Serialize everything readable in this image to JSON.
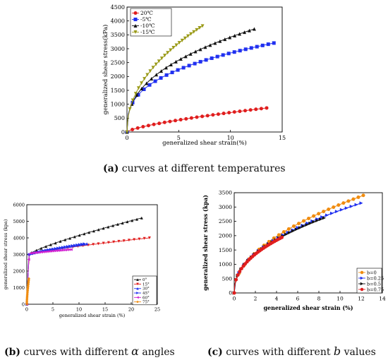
{
  "captions": {
    "a": {
      "letter": "(a)",
      "text": " curves at different temperatures"
    },
    "b": {
      "letter": "(b)",
      "pre": " curves with different ",
      "symbol": "α",
      "post": " angles"
    },
    "c": {
      "letter": "(c)",
      "pre": " curves with different ",
      "symbol": "b",
      "post": " values"
    }
  },
  "chart_data": [
    {
      "id": "a",
      "type": "line",
      "xlabel": "generalized shear strain(%)",
      "ylabel": "generalized shear stress(kPa)",
      "xlim": [
        0,
        15
      ],
      "ylim": [
        0,
        4500
      ],
      "xticks": [
        0,
        5,
        10,
        15
      ],
      "yticks": [
        0,
        500,
        1000,
        1500,
        2000,
        2500,
        3000,
        3500,
        4000,
        4500
      ],
      "legend_position": "top-left",
      "series": [
        {
          "name": "20℃",
          "color": "#e01e1e",
          "marker": "circle",
          "end_x": 13.5,
          "scale": 140,
          "power": 0.7
        },
        {
          "name": "-5℃",
          "color": "#2030f0",
          "marker": "square",
          "end_x": 14.2,
          "scale": 1300,
          "power": 0.34
        },
        {
          "name": "-10℃",
          "color": "#111111",
          "marker": "triangle-up",
          "end_x": 12.3,
          "scale": 1360,
          "power": 0.4
        },
        {
          "name": "-15℃",
          "color": "#9a9a18",
          "marker": "triangle-down",
          "end_x": 7.3,
          "scale": 1500,
          "power": 0.47
        }
      ]
    },
    {
      "id": "b",
      "type": "line",
      "xlabel": "generalized shear strain (%)",
      "ylabel": "generalized shear stress (kpa)",
      "xlim": [
        0,
        25
      ],
      "ylim": [
        0,
        6000
      ],
      "xticks": [
        0,
        5,
        10,
        15,
        20,
        25
      ],
      "yticks": [
        0,
        1000,
        2000,
        3000,
        4000,
        5000,
        6000
      ],
      "legend_position": "bottom-right",
      "series": [
        {
          "name": "0°",
          "color": "#111111",
          "marker": "triangle-up",
          "end_x": 22,
          "base": 3000,
          "amp": 2200
        },
        {
          "name": "15°",
          "color": "#e01e1e",
          "marker": "triangle-down",
          "end_x": 23.5,
          "base": 3000,
          "amp": 1000
        },
        {
          "name": "30°",
          "color": "#2030f0",
          "marker": "triangle-up",
          "end_x": 11.5,
          "base": 3000,
          "amp": 650
        },
        {
          "name": "45°",
          "color": "#2030f0",
          "marker": "triangle-right",
          "end_x": 11.0,
          "base": 3000,
          "amp": 650
        },
        {
          "name": "60°",
          "color": "#d020d0",
          "marker": "triangle-left",
          "end_x": 8.5,
          "base": 3050,
          "amp": 250
        },
        {
          "name": "75°",
          "color": "#f08c10",
          "marker": "diamond",
          "end_x": 0.4,
          "base": 0,
          "amp": 1550
        }
      ]
    },
    {
      "id": "c",
      "type": "line",
      "xlabel": "generalized shear strain (%)",
      "ylabel": "generalized shear stress (kpa)",
      "xlim": [
        0,
        14
      ],
      "ylim": [
        0,
        3500
      ],
      "xticks": [
        0,
        2,
        4,
        6,
        8,
        10,
        12,
        14
      ],
      "yticks": [
        0,
        500,
        1000,
        1500,
        2000,
        2500,
        3000,
        3500
      ],
      "legend_position": "bottom-right",
      "series": [
        {
          "name": "b=0",
          "color": "#f08c10",
          "marker": "circle",
          "end_x": 12.2,
          "scale": 1000,
          "power": 0.49
        },
        {
          "name": "b=0.25",
          "color": "#2030f0",
          "marker": "triangle-right",
          "end_x": 12.0,
          "scale": 1000,
          "power": 0.46
        },
        {
          "name": "b=0.5",
          "color": "#111111",
          "marker": "triangle-right",
          "end_x": 8.5,
          "scale": 1000,
          "power": 0.45
        },
        {
          "name": "b=0.75",
          "color": "#e01e1e",
          "marker": "circle",
          "end_x": 4.5,
          "scale": 1000,
          "power": 0.44
        }
      ]
    }
  ]
}
